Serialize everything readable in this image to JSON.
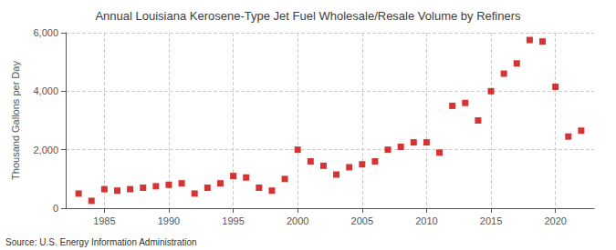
{
  "chart_data": {
    "type": "scatter",
    "title": "Annual Louisiana Kerosene-Type Jet Fuel Wholesale/Resale Volume by Refiners",
    "ylabel": "Thousand Gallons per Day",
    "annotations": [
      "Source: U.S. Energy Information Administration"
    ],
    "x": [
      1983,
      1984,
      1985,
      1986,
      1987,
      1988,
      1989,
      1990,
      1991,
      1992,
      1993,
      1994,
      1995,
      1996,
      1997,
      1998,
      1999,
      2000,
      2001,
      2002,
      2003,
      2004,
      2005,
      2006,
      2007,
      2008,
      2009,
      2010,
      2011,
      2012,
      2013,
      2014,
      2015,
      2016,
      2017,
      2018,
      2019,
      2020,
      2021,
      2022
    ],
    "values": [
      500,
      250,
      650,
      600,
      650,
      700,
      750,
      800,
      850,
      500,
      700,
      850,
      1100,
      1050,
      700,
      600,
      1000,
      2000,
      1600,
      1450,
      1150,
      1400,
      1500,
      1600,
      2000,
      2100,
      2250,
      2250,
      1900,
      3500,
      3600,
      3000,
      4000,
      4600,
      4950,
      5750,
      5700,
      4150,
      2450,
      2650
    ],
    "color": "#cc0000",
    "marker": "square",
    "xlim": [
      1982,
      2023
    ],
    "xticks": [
      1985,
      1990,
      1995,
      2000,
      2005,
      2010,
      2015,
      2020
    ],
    "ylim": [
      0,
      6000
    ],
    "yticks": [
      0,
      {
        "value": 2000,
        "label": "2,000"
      },
      {
        "value": 4000,
        "label": "4,000"
      },
      {
        "value": 6000,
        "label": "6,000"
      }
    ],
    "grid": true
  }
}
